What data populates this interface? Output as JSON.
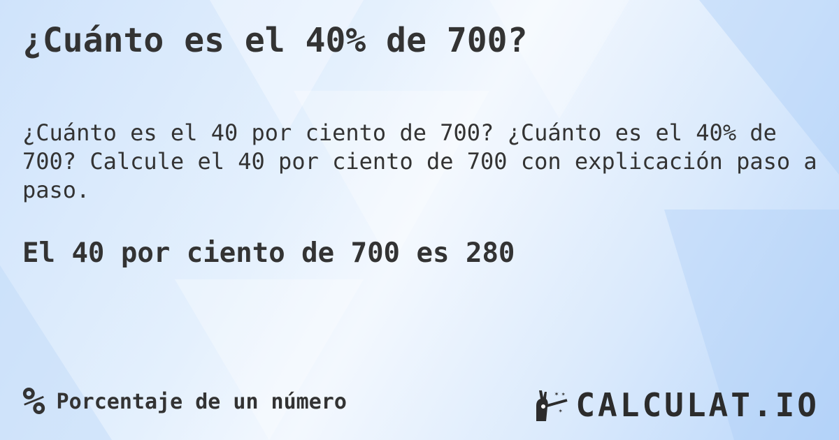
{
  "title": "¿Cuánto es el 40% de 700?",
  "description": "¿Cuánto es el 40 por ciento de 700? ¿Cuánto es el 40% de 700? Calcule el 40 por ciento de 700 con explicación paso a paso.",
  "answer": "El 40 por ciento de 700 es 280",
  "footer": {
    "icon": "percent-icon",
    "symbol": "%",
    "label": "Porcentaje de un número"
  },
  "logo": {
    "icon": "magic-wand-hand-icon",
    "text": "CALCULAT.IO"
  },
  "colors": {
    "text": "#333333",
    "background": "#dcebfc"
  }
}
